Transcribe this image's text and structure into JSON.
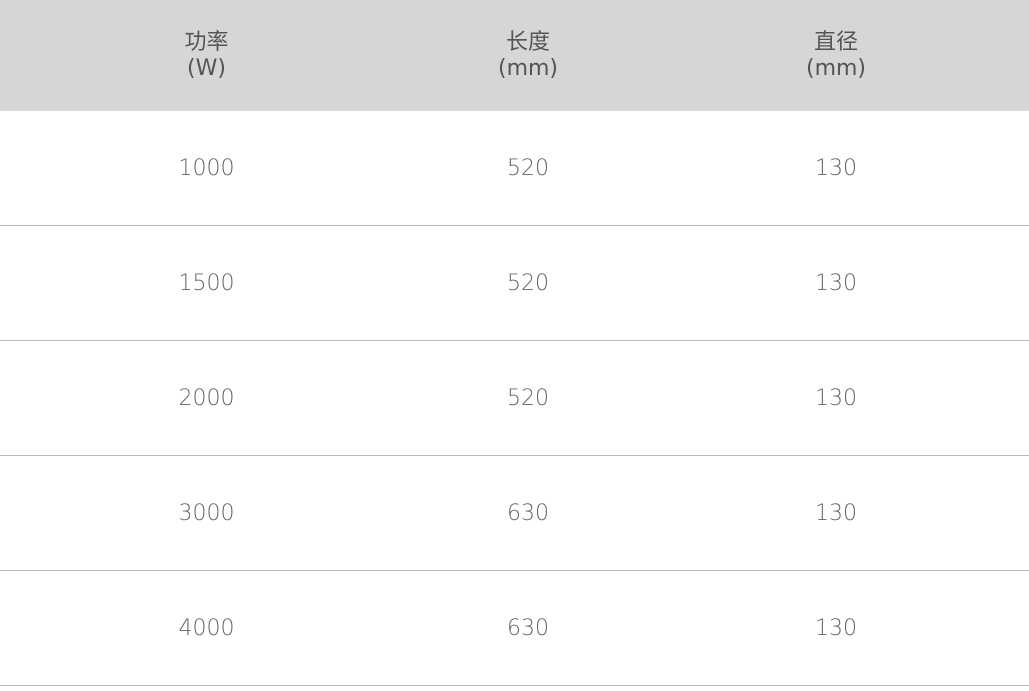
{
  "table": {
    "headers": [
      {
        "label": "功率",
        "unit": "(W)"
      },
      {
        "label": "长度",
        "unit": "(mm)"
      },
      {
        "label": "直径",
        "unit": "(mm)"
      }
    ],
    "rows": [
      [
        "1000",
        "520",
        "130"
      ],
      [
        "1500",
        "520",
        "130"
      ],
      [
        "2000",
        "520",
        "130"
      ],
      [
        "3000",
        "630",
        "130"
      ],
      [
        "4000",
        "630",
        "130"
      ]
    ]
  }
}
